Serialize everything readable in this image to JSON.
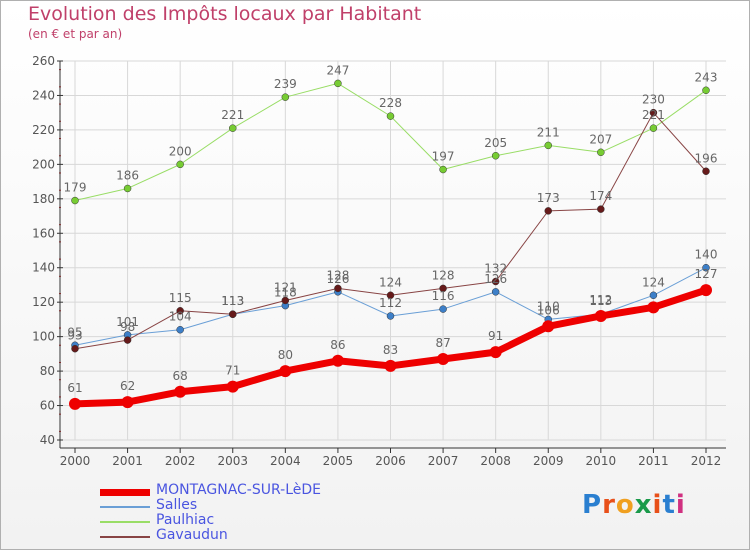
{
  "title": "Evolution des Impôts locaux par Habitant",
  "subtitle": "(en € et par an)",
  "logo": {
    "letters": [
      "P",
      "r",
      "o",
      "x",
      "i",
      "t",
      "i"
    ],
    "colors": [
      "#2a7fd0",
      "#e8501a",
      "#f0a020",
      "#1a9a4a",
      "#e8501a",
      "#2a7fd0",
      "#d03080"
    ]
  },
  "chart_data": {
    "type": "line",
    "title": "Evolution des Impôts locaux par Habitant",
    "subtitle": "(en € et par an)",
    "x": [
      "2000",
      "2001",
      "2002",
      "2003",
      "2004",
      "2005",
      "2006",
      "2007",
      "2008",
      "2009",
      "2010",
      "2011",
      "2012"
    ],
    "ylim": [
      40,
      260
    ],
    "yticks": [
      40,
      60,
      80,
      100,
      120,
      140,
      160,
      180,
      200,
      220,
      240,
      260
    ],
    "grid": true,
    "legend_position": "bottom-left",
    "series": [
      {
        "name": "MONTAGNAC-SUR-LèDE",
        "color": "#ee0000",
        "marker_color": "#ee0000",
        "width": 7,
        "marker_r": 6,
        "values": [
          61,
          62,
          68,
          71,
          80,
          86,
          83,
          87,
          91,
          106,
          112,
          117,
          127
        ],
        "labels": [
          "61",
          "62",
          "68",
          "71",
          "80",
          "86",
          "83",
          "87",
          "91",
          "106",
          "112",
          "",
          "127"
        ]
      },
      {
        "name": "Salles",
        "color": "#6a9fd6",
        "marker_color": "#3d7fc8",
        "width": 1,
        "marker_r": 3.5,
        "values": [
          95,
          101,
          104,
          113,
          118,
          126,
          112,
          116,
          126,
          110,
          113,
          124,
          140
        ],
        "labels": [
          "95",
          "101",
          "104",
          "113",
          "118",
          "126",
          "112",
          "116",
          "126",
          "110",
          "113",
          "124",
          "140"
        ]
      },
      {
        "name": "Paulhiac",
        "color": "#99dd66",
        "marker_color": "#77cc33",
        "width": 1,
        "marker_r": 3.5,
        "values": [
          179,
          186,
          200,
          221,
          239,
          247,
          228,
          197,
          205,
          211,
          207,
          221,
          243
        ],
        "labels": [
          "179",
          "186",
          "200",
          "221",
          "239",
          "247",
          "228",
          "197",
          "205",
          "211",
          "207",
          "221",
          "243"
        ]
      },
      {
        "name": "Gavaudun",
        "color": "#884444",
        "marker_color": "#661a1a",
        "width": 1,
        "marker_r": 3.5,
        "values": [
          93,
          98,
          115,
          113,
          121,
          128,
          124,
          128,
          132,
          173,
          174,
          230,
          196
        ],
        "labels": [
          "93",
          "98",
          "115",
          "113",
          "121",
          "128",
          "124",
          "128",
          "132",
          "173",
          "174",
          "230",
          "196"
        ]
      }
    ]
  }
}
